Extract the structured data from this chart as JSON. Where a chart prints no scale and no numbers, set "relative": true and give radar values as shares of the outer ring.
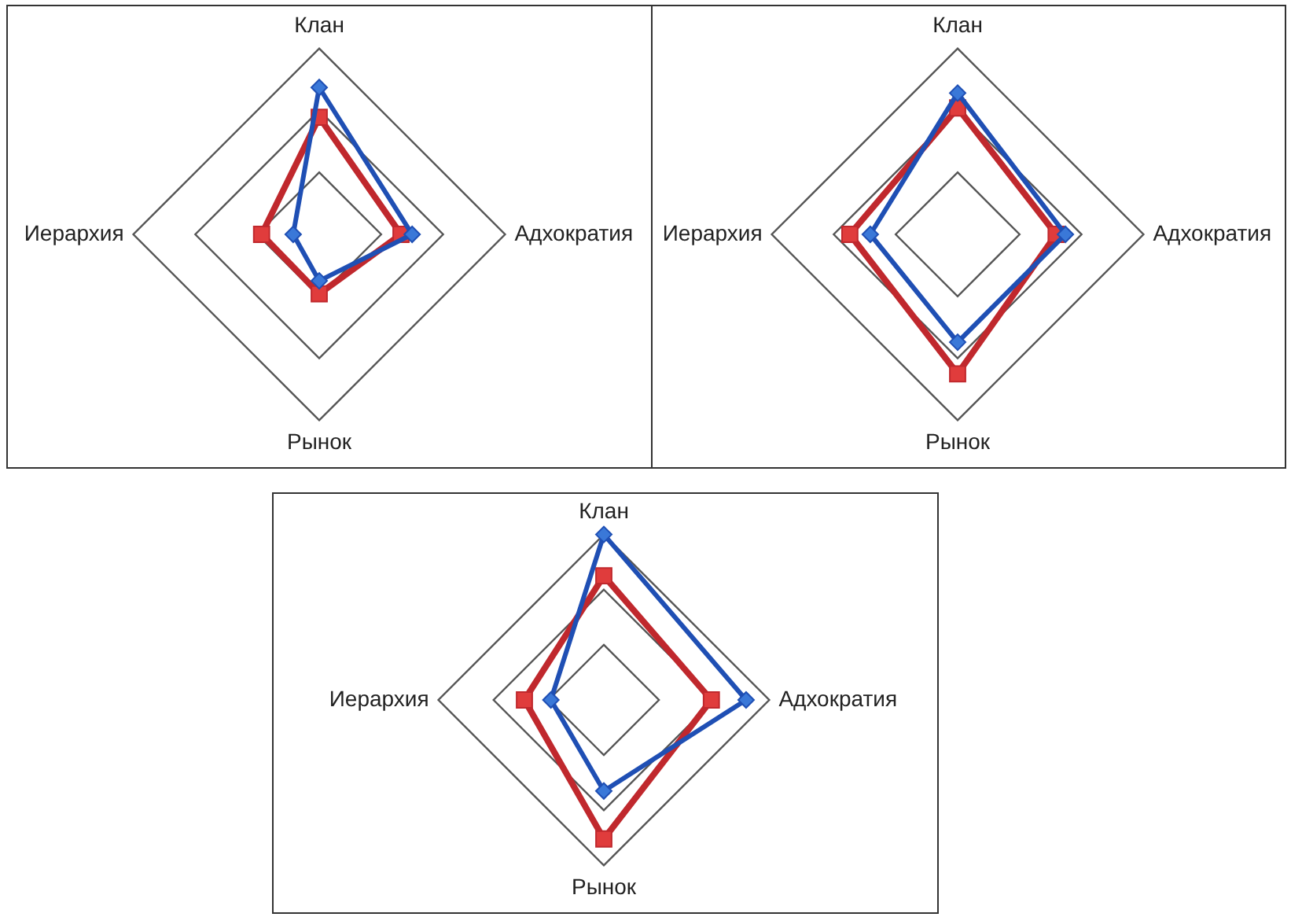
{
  "chart_data": [
    {
      "type": "radar",
      "relative": true,
      "grid": true,
      "categories": [
        "Клан",
        "Адхократия",
        "Рынок",
        "Иерархия"
      ],
      "series": [
        {
          "color": "#1f4fb4",
          "marker": "diamond",
          "values": [
            0.79,
            0.5,
            0.25,
            0.14
          ]
        },
        {
          "color": "#c0282d",
          "marker": "square",
          "values": [
            0.63,
            0.44,
            0.32,
            0.31
          ]
        }
      ]
    },
    {
      "type": "radar",
      "relative": true,
      "grid": true,
      "categories": [
        "Клан",
        "Адхократия",
        "Рынок",
        "Иерархия"
      ],
      "series": [
        {
          "color": "#1f4fb4",
          "marker": "diamond",
          "values": [
            0.76,
            0.58,
            0.58,
            0.47
          ]
        },
        {
          "color": "#c0282d",
          "marker": "square",
          "values": [
            0.68,
            0.53,
            0.75,
            0.58
          ]
        }
      ]
    },
    {
      "type": "radar",
      "relative": true,
      "grid": true,
      "categories": [
        "Клан",
        "Адхократия",
        "Рынок",
        "Иерархия"
      ],
      "series": [
        {
          "color": "#1f4fb4",
          "marker": "diamond",
          "values": [
            1.0,
            0.86,
            0.55,
            0.32
          ]
        },
        {
          "color": "#c0282d",
          "marker": "square",
          "values": [
            0.75,
            0.65,
            0.84,
            0.48
          ]
        }
      ]
    }
  ]
}
